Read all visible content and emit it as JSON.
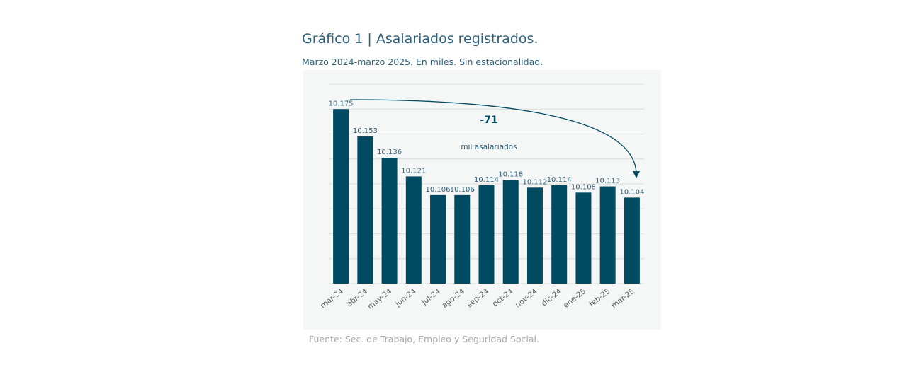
{
  "title": "Gráfico 1 | Asalariados registrados.",
  "subtitle": "Marzo 2024-marzo 2025. En miles. Sin estacionalidad.",
  "source": "Fuente: Sec. de Trabajo, Empleo y Seguridad Social.",
  "colors": {
    "bar": "#004a62",
    "text": "#2e5f7a",
    "grid": "#dcdcdc",
    "panel": "#f5f7f7"
  },
  "chart_data": {
    "type": "bar",
    "categories": [
      "mar-24",
      "abr-24",
      "may-24",
      "jun-24",
      "jul-24",
      "ago-24",
      "sep-24",
      "oct-24",
      "nov-24",
      "dic-24",
      "ene-25",
      "feb-25",
      "mar-25"
    ],
    "values": [
      10175,
      10153,
      10136,
      10121,
      10106,
      10106,
      10114,
      10118,
      10112,
      10114,
      10108,
      10113,
      10104
    ],
    "value_labels": [
      "10.175",
      "10.153",
      "10.136",
      "10.121",
      "10.106",
      "10.106",
      "10.114",
      "10.118",
      "10.112",
      "10.114",
      "10.108",
      "10.113",
      "10.104"
    ],
    "ylim": [
      10035,
      10195
    ],
    "grid": true,
    "annotation": {
      "value_text": "-71",
      "caption": "mil asalariados",
      "from": "mar-24",
      "to": "mar-25"
    }
  }
}
